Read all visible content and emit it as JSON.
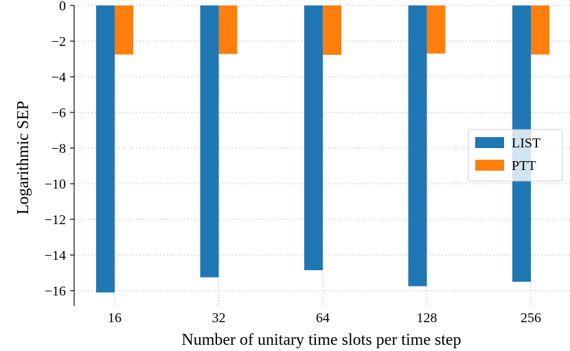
{
  "chart_data": {
    "type": "bar",
    "title": "",
    "xlabel": "Number of unitary time slots per time step",
    "ylabel": "Logarithmic SEP",
    "categories": [
      "16",
      "32",
      "64",
      "128",
      "256"
    ],
    "ylim": [
      -16.8,
      0
    ],
    "yticks": [
      0,
      -2,
      -4,
      -6,
      -8,
      -10,
      -12,
      -14,
      -16
    ],
    "ytick_labels": [
      "0",
      "−2",
      "−4",
      "−6",
      "−8",
      "−10",
      "−12",
      "−14",
      "−16"
    ],
    "grid": true,
    "legend_position": "center-right",
    "series": [
      {
        "name": "LIST",
        "color": "#1f77b4",
        "values": [
          -16.1,
          -15.25,
          -14.85,
          -15.75,
          -15.5
        ]
      },
      {
        "name": "PTT",
        "color": "#ff7f0e",
        "values": [
          -2.75,
          -2.72,
          -2.77,
          -2.7,
          -2.75
        ]
      }
    ]
  }
}
